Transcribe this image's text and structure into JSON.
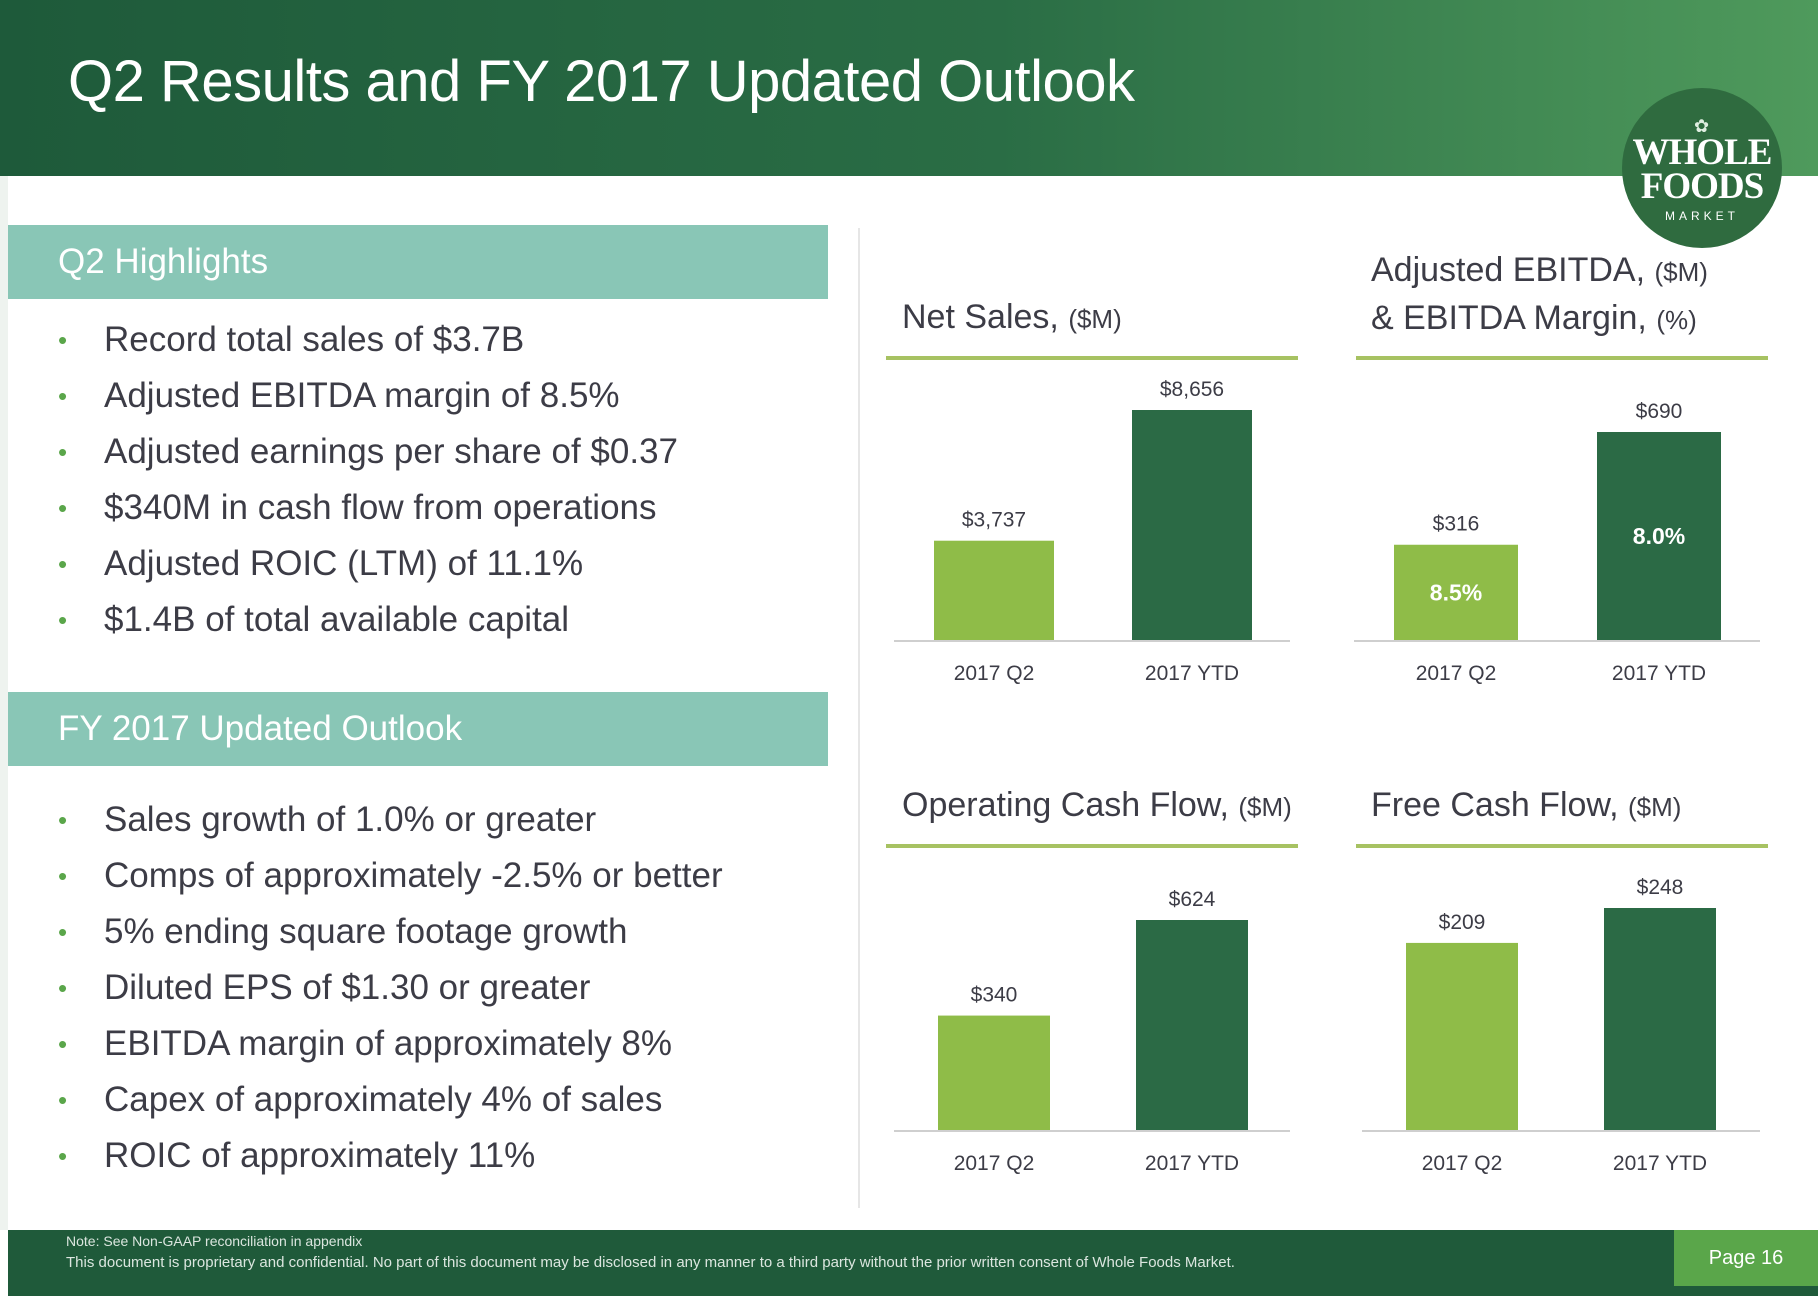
{
  "title": "Q2 Results and FY 2017 Updated Outlook",
  "logo": {
    "line1": "WHOLE",
    "line2": "FOODS",
    "line3": "MARKET"
  },
  "q2_highlights": {
    "heading": "Q2 Highlights",
    "items": [
      "Record total sales of $3.7B",
      "Adjusted EBITDA margin of 8.5%",
      "Adjusted earnings per share of $0.37",
      "$340M in cash flow from operations",
      "Adjusted ROIC (LTM) of 11.1%",
      "$1.4B of total available capital"
    ]
  },
  "fy_outlook": {
    "heading": "FY 2017 Updated Outlook",
    "items": [
      "Sales growth of 1.0% or greater",
      "Comps of approximately -2.5% or better",
      "5% ending square footage growth",
      "Diluted EPS of $1.30 or greater",
      "EBITDA margin of approximately 8%",
      "Capex of approximately 4% of sales",
      "ROIC of approximately 11%"
    ]
  },
  "colors": {
    "light_bar": "#8fbc48",
    "dark_bar": "#2b6a45",
    "title_line": "#a7c262"
  },
  "chart_data": [
    {
      "type": "bar",
      "title": "Net Sales,",
      "unit": "($M)",
      "categories": [
        "2017 Q2",
        "2017 YTD"
      ],
      "values": [
        3737,
        8656
      ],
      "labels": [
        "$3,737",
        "$8,656"
      ],
      "ylim": [
        0,
        9000
      ]
    },
    {
      "type": "bar",
      "title": "Adjusted EBITDA,",
      "unit": "($M)",
      "title2": "& EBITDA Margin,",
      "unit2": "(%)",
      "categories": [
        "2017 Q2",
        "2017 YTD"
      ],
      "values": [
        316,
        690
      ],
      "labels": [
        "$316",
        "$690"
      ],
      "inner_labels": [
        "8.5%",
        "8.0%"
      ],
      "ylim": [
        0,
        800
      ]
    },
    {
      "type": "bar",
      "title": "Operating Cash Flow,",
      "unit": "($M)",
      "categories": [
        "2017 Q2",
        "2017 YTD"
      ],
      "values": [
        340,
        624
      ],
      "labels": [
        "$340",
        "$624"
      ],
      "ylim": [
        0,
        650
      ]
    },
    {
      "type": "bar",
      "title": "Free Cash Flow,",
      "unit": "($M)",
      "categories": [
        "2017 Q2",
        "2017 YTD"
      ],
      "values": [
        209,
        248
      ],
      "labels": [
        "$209",
        "$248"
      ],
      "ylim": [
        0,
        275
      ]
    }
  ],
  "footer": {
    "note": "Note: See Non-GAAP reconciliation in appendix",
    "legal": "This document is proprietary and confidential. No part of this document may be disclosed in any manner to a third party without the prior written consent of Whole Foods Market.",
    "page": "Page 16"
  }
}
